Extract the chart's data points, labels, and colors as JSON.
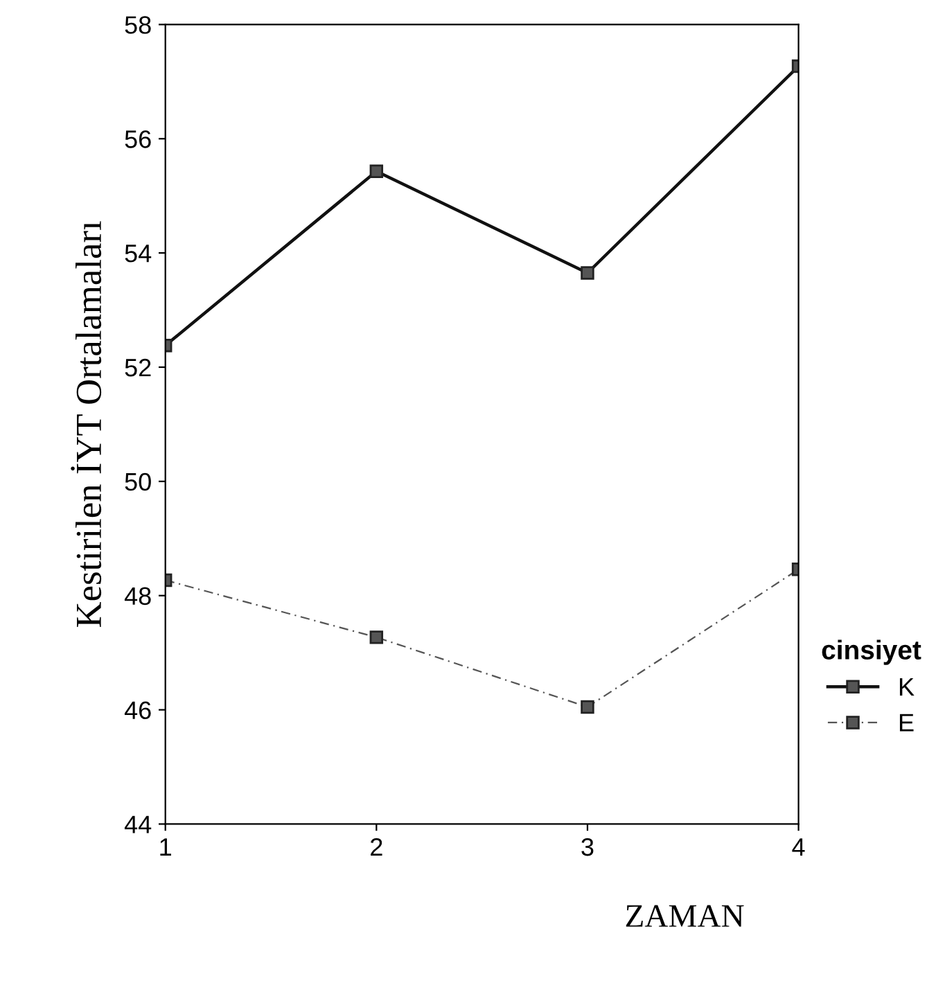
{
  "chart_data": {
    "type": "line",
    "xlabel": "ZAMAN",
    "ylabel": "Kestirilen İYT Ortalamaları",
    "legend_title": "cinsiyet",
    "x": [
      1,
      2,
      3,
      4
    ],
    "xlim": [
      1,
      4
    ],
    "xticks": [
      1,
      2,
      3,
      4
    ],
    "ylim": [
      44,
      58
    ],
    "yticks": [
      44,
      46,
      48,
      50,
      52,
      54,
      56,
      58
    ],
    "series": [
      {
        "name": "K",
        "color": "#111111",
        "line_style": "solid",
        "values": [
          52.38,
          55.43,
          53.65,
          57.27
        ]
      },
      {
        "name": "E",
        "color": "#555555",
        "line_style": "dashed",
        "values": [
          48.27,
          47.27,
          46.05,
          48.46
        ]
      }
    ],
    "marker": "square",
    "grid": false,
    "legend": "right"
  }
}
